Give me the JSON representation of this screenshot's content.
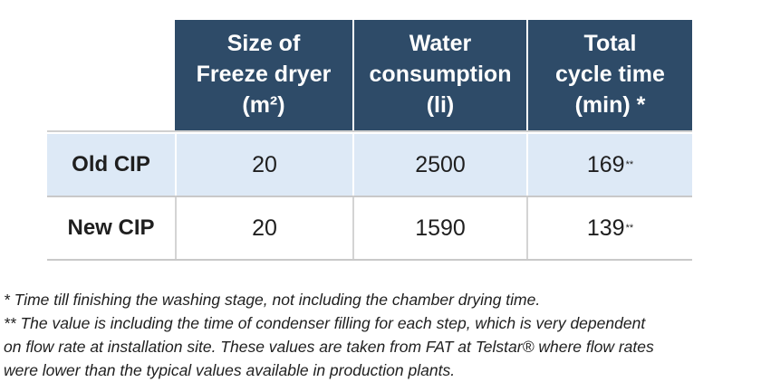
{
  "table": {
    "headers": [
      {
        "line1": "Size of",
        "line2": "Freeze dryer",
        "line3": "(m²)"
      },
      {
        "line1": "Water",
        "line2": "consumption",
        "line3": "(li)"
      },
      {
        "line1": "Total",
        "line2": "cycle time",
        "line3": "(min) *"
      }
    ],
    "rows": [
      {
        "label": "Old CIP",
        "size": "20",
        "water": "2500",
        "time": "169",
        "time_mark": "**"
      },
      {
        "label": "New CIP",
        "size": "20",
        "water": "1590",
        "time": "139",
        "time_mark": "**"
      }
    ]
  },
  "footnotes": {
    "note1": "* Time till finishing the washing stage, not including the chamber drying time.",
    "note2_line1": "** The value is including the time of condenser filling for each step, which is very dependent",
    "note2_line2": "on flow rate at installation site. These values are taken from FAT at Telstar® where flow rates",
    "note2_line3": "were lower than the typical values available in production plants."
  },
  "colors": {
    "header_bg": "#2e4b68",
    "row_highlight": "#dde9f6"
  }
}
